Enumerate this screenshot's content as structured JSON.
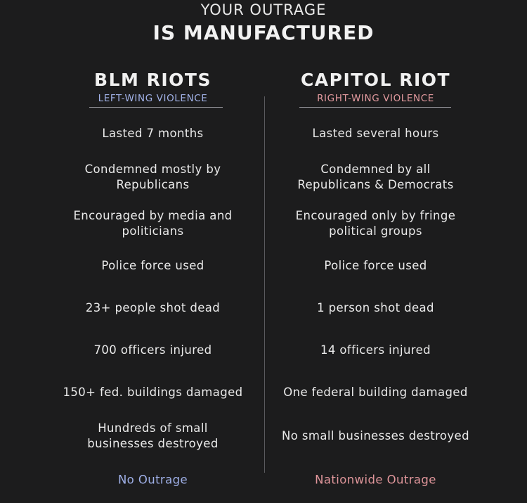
{
  "header": {
    "line1": "YOUR OUTRAGE",
    "line2": "IS MANUFACTURED"
  },
  "left": {
    "title": "BLM RIOTS",
    "subtitle": "LEFT-WING VIOLENCE",
    "rows": [
      "Lasted 7 months",
      "Condemned mostly by\nRepublicans",
      "Encouraged by media and\npoliticians",
      "Police force used",
      "23+ people shot dead",
      "700 officers injured",
      "150+ fed. buildings damaged",
      "Hundreds of small\nbusinesses destroyed"
    ],
    "footer": "No Outrage"
  },
  "right": {
    "title": "CAPITOL RIOT",
    "subtitle": "RIGHT-WING VIOLENCE",
    "rows": [
      "Lasted several hours",
      "Condemned by all\nRepublicans & Democrats",
      "Encouraged only by fringe\npolitical groups",
      "Police force used",
      "1 person shot dead",
      "14 officers injured",
      "One federal building damaged",
      "No small businesses destroyed"
    ],
    "footer": "Nationwide Outrage"
  },
  "colors": {
    "background": "#1c1c1d",
    "left_accent": "#a2b2e8",
    "right_accent": "#e39a9f"
  }
}
